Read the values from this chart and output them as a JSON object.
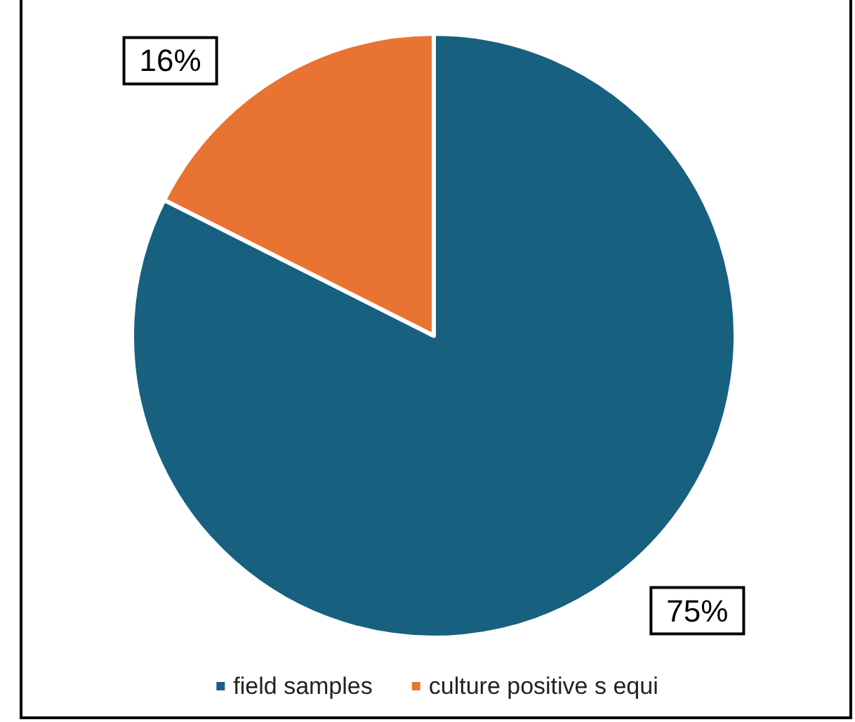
{
  "chart_data": {
    "type": "pie",
    "categories": [
      "field samples",
      "culture positive s equi"
    ],
    "values": [
      75,
      16
    ],
    "colors": [
      "#17607f",
      "#e97332"
    ],
    "value_labels": [
      "75%",
      "16%"
    ],
    "legend": "bottom"
  }
}
